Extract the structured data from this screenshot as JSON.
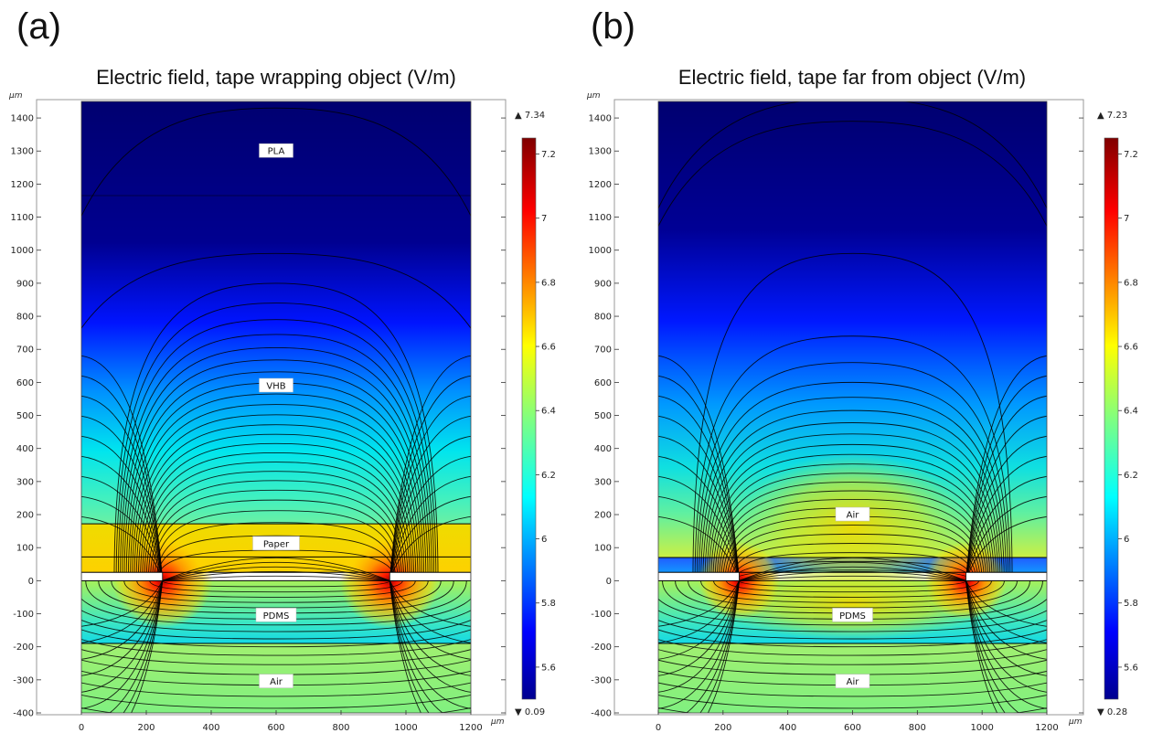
{
  "chart_data": [
    {
      "type": "heatmap",
      "panel_label": "(a)",
      "title": "Electric field, tape wrapping object (V/m)",
      "x_unit": "µm",
      "y_unit": "µm",
      "xlim": [
        0,
        1200
      ],
      "ylim": [
        -400,
        1450
      ],
      "xticks": [
        0,
        200,
        400,
        600,
        800,
        1000,
        1200
      ],
      "yticks": [
        -400,
        -300,
        -200,
        -100,
        0,
        100,
        200,
        300,
        400,
        500,
        600,
        700,
        800,
        900,
        1000,
        1100,
        1200,
        1300,
        1400
      ],
      "colorscale": "jet",
      "colorbar": {
        "min_label": "▼ 0.09",
        "max_label": "▲ 7.34",
        "range": [
          5.5,
          7.25
        ],
        "ticks": [
          "5.6",
          "5.8",
          "6",
          "6.2",
          "6.4",
          "6.6",
          "6.8",
          "7",
          "7.2"
        ]
      },
      "electrodes": [
        250,
        950
      ],
      "regions": [
        {
          "label": "PLA",
          "y_label": 1300
        },
        {
          "label": "VHB",
          "y_label": 590
        },
        {
          "label": "Paper",
          "y_label": 112
        },
        {
          "label": "PDMS",
          "y_label": -105
        },
        {
          "label": "Air",
          "y_label": -305
        }
      ],
      "layer_boundaries_y": [
        1165,
        172,
        72,
        25,
        0,
        -190
      ],
      "grid": false
    },
    {
      "type": "heatmap",
      "panel_label": "(b)",
      "title": "Electric field, tape far from object (V/m)",
      "x_unit": "µm",
      "y_unit": "µm",
      "xlim": [
        0,
        1200
      ],
      "ylim": [
        -400,
        1450
      ],
      "xticks": [
        0,
        200,
        400,
        600,
        800,
        1000,
        1200
      ],
      "yticks": [
        -400,
        -300,
        -200,
        -100,
        0,
        100,
        200,
        300,
        400,
        500,
        600,
        700,
        800,
        900,
        1000,
        1100,
        1200,
        1300,
        1400
      ],
      "colorscale": "jet",
      "colorbar": {
        "min_label": "▼ 0.28",
        "max_label": "▲ 7.23",
        "range": [
          5.5,
          7.25
        ],
        "ticks": [
          "5.6",
          "5.8",
          "6",
          "6.2",
          "6.4",
          "6.6",
          "6.8",
          "7",
          "7.2"
        ]
      },
      "electrodes": [
        250,
        950
      ],
      "regions": [
        {
          "label": "Air",
          "y_label": 200
        },
        {
          "label": "PDMS",
          "y_label": -105
        },
        {
          "label": "Air",
          "y_label": -305
        }
      ],
      "layer_boundaries_y": [
        70,
        25,
        0,
        -190
      ],
      "grid": false
    }
  ]
}
